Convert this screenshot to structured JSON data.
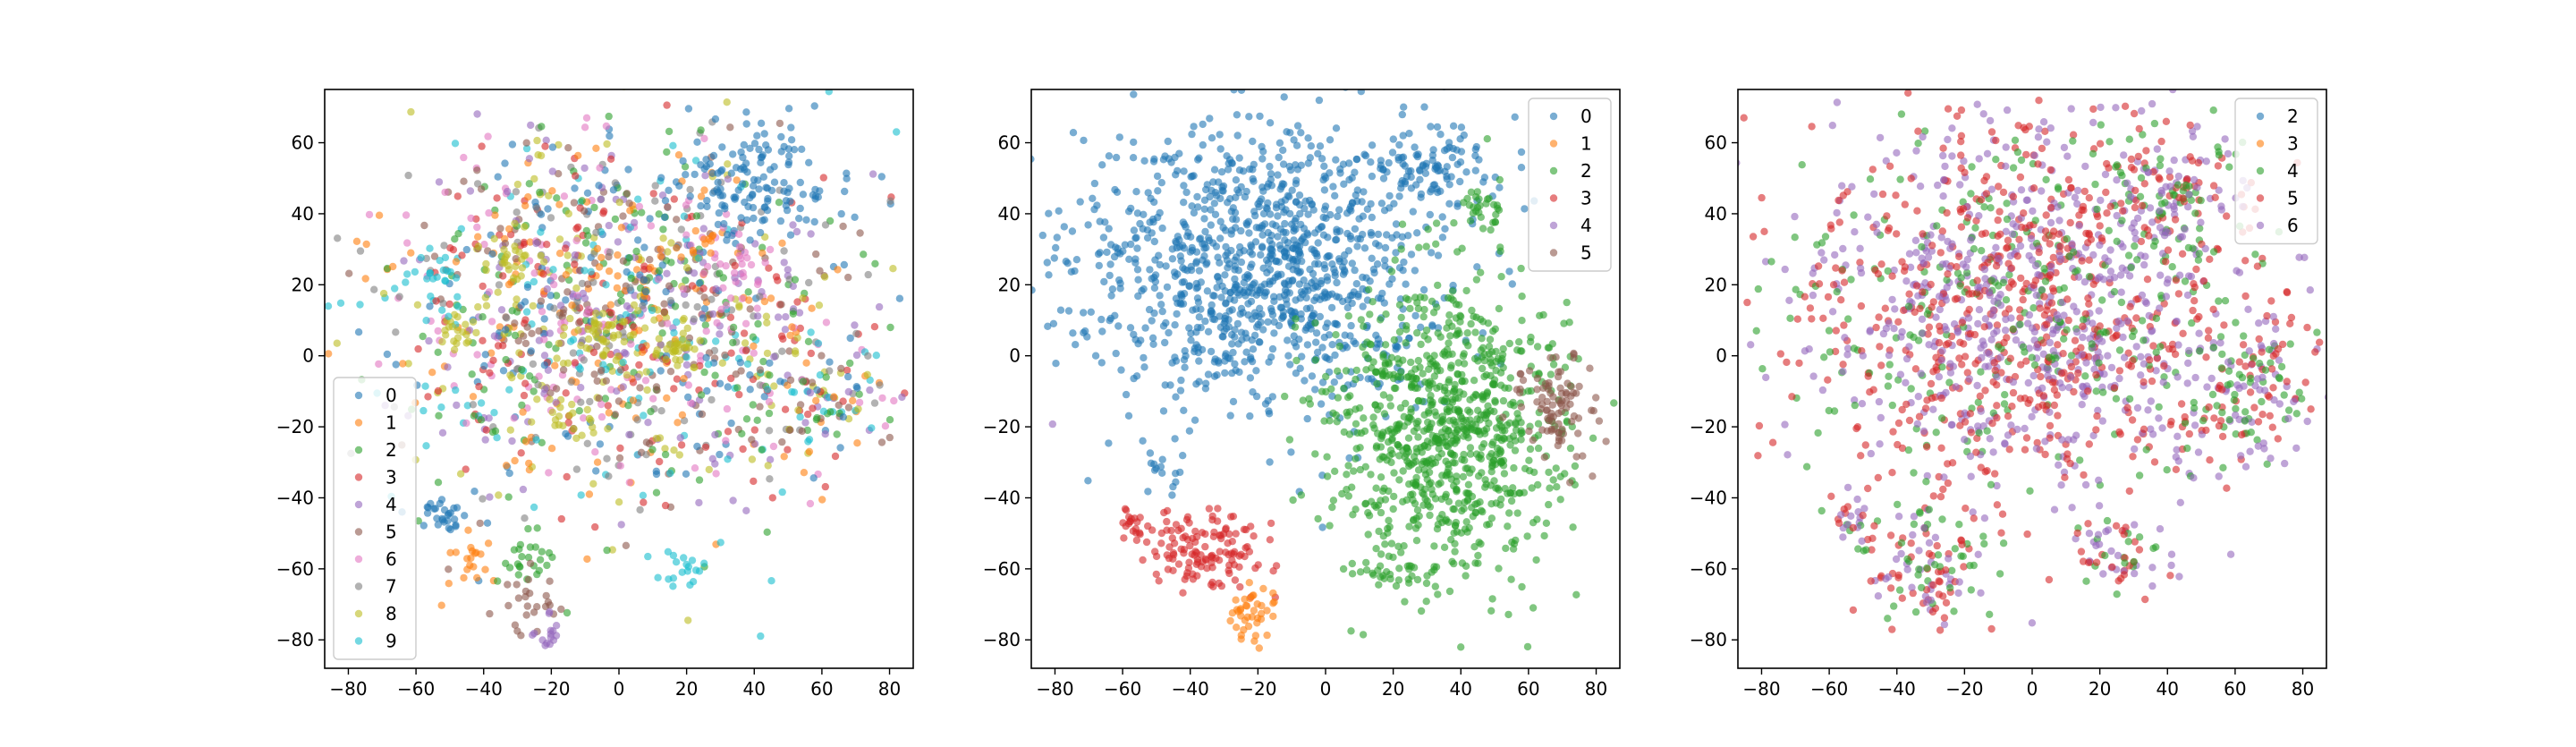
{
  "chart_data": [
    {
      "type": "scatter",
      "title": "",
      "xlabel": "",
      "ylabel": "",
      "xlim": [
        -87,
        87
      ],
      "ylim": [
        -88,
        75
      ],
      "xticks": [
        -80,
        -60,
        -40,
        -20,
        0,
        20,
        40,
        60,
        80
      ],
      "yticks": [
        -80,
        -60,
        -40,
        -20,
        0,
        20,
        40,
        60
      ],
      "grid": false,
      "legend_position": "lower-left",
      "series": [
        {
          "name": "0",
          "color": "#1f77b4"
        },
        {
          "name": "1",
          "color": "#ff7f0e"
        },
        {
          "name": "2",
          "color": "#2ca02c"
        },
        {
          "name": "3",
          "color": "#d62728"
        },
        {
          "name": "4",
          "color": "#9467bd"
        },
        {
          "name": "5",
          "color": "#8c564b"
        },
        {
          "name": "6",
          "color": "#e377c2"
        },
        {
          "name": "7",
          "color": "#7f7f7f"
        },
        {
          "name": "8",
          "color": "#bcbd22"
        },
        {
          "name": "9",
          "color": "#17becf"
        }
      ],
      "clusters": [
        {
          "series": "0",
          "center": [
            40,
            50
          ],
          "spread": [
            11,
            8
          ],
          "n": 130
        },
        {
          "series": "0",
          "center": [
            -52,
            -45
          ],
          "spread": [
            4,
            3
          ],
          "n": 30
        },
        {
          "series": "8",
          "center": [
            -5,
            6
          ],
          "spread": [
            5,
            4
          ],
          "n": 40
        },
        {
          "series": "8",
          "center": [
            18,
            2
          ],
          "spread": [
            4,
            3
          ],
          "n": 30
        },
        {
          "series": "8",
          "center": [
            -30,
            28
          ],
          "spread": [
            4,
            3
          ],
          "n": 20
        },
        {
          "series": "8",
          "center": [
            -48,
            8
          ],
          "spread": [
            4,
            3
          ],
          "n": 20
        },
        {
          "series": "8",
          "center": [
            -15,
            -18
          ],
          "spread": [
            5,
            3
          ],
          "n": 20
        },
        {
          "series": "1",
          "center": [
            -43,
            -58
          ],
          "spread": [
            3,
            4
          ],
          "n": 20
        },
        {
          "series": "2",
          "center": [
            -28,
            -58
          ],
          "spread": [
            5,
            4
          ],
          "n": 25
        },
        {
          "series": "6",
          "center": [
            35,
            25
          ],
          "spread": [
            8,
            6
          ],
          "n": 25
        },
        {
          "series": "9",
          "center": [
            -55,
            20
          ],
          "spread": [
            5,
            5
          ],
          "n": 25
        },
        {
          "series": "9",
          "center": [
            20,
            -60
          ],
          "spread": [
            5,
            3
          ],
          "n": 20
        },
        {
          "series": "1",
          "center": [
            25,
            30
          ],
          "spread": [
            3,
            3
          ],
          "n": 12
        },
        {
          "series": "5",
          "center": [
            -25,
            -70
          ],
          "spread": [
            5,
            5
          ],
          "n": 25
        },
        {
          "series": "4",
          "center": [
            -22,
            -78
          ],
          "spread": [
            3,
            3
          ],
          "n": 15
        }
      ],
      "background_blob": {
        "series": [
          "0",
          "1",
          "2",
          "3",
          "4",
          "5",
          "6",
          "7",
          "8",
          "9"
        ],
        "center": [
          -2,
          12
        ],
        "spread": [
          34,
          26
        ],
        "n": 1400
      },
      "tail_blob": {
        "series": [
          "0",
          "1",
          "2",
          "3",
          "4",
          "5",
          "6",
          "7",
          "8",
          "9"
        ],
        "center": [
          60,
          -12
        ],
        "spread": [
          10,
          9
        ],
        "n": 120
      }
    },
    {
      "type": "scatter",
      "title": "",
      "xlabel": "",
      "ylabel": "",
      "xlim": [
        -87,
        87
      ],
      "ylim": [
        -88,
        75
      ],
      "xticks": [
        -80,
        -60,
        -40,
        -20,
        0,
        20,
        40,
        60,
        80
      ],
      "yticks": [
        -80,
        -60,
        -40,
        -20,
        0,
        20,
        40,
        60
      ],
      "grid": false,
      "legend_position": "upper-right",
      "series": [
        {
          "name": "0",
          "color": "#1f77b4"
        },
        {
          "name": "1",
          "color": "#ff7f0e"
        },
        {
          "name": "2",
          "color": "#2ca02c"
        },
        {
          "name": "3",
          "color": "#d62728"
        },
        {
          "name": "4",
          "color": "#9467bd"
        },
        {
          "name": "5",
          "color": "#8c564b"
        }
      ],
      "clusters": [
        {
          "series": "0",
          "center": [
            -20,
            25
          ],
          "spread": [
            28,
            20
          ],
          "n": 1100
        },
        {
          "series": "0",
          "center": [
            33,
            53
          ],
          "spread": [
            9,
            6
          ],
          "n": 90
        },
        {
          "series": "0",
          "center": [
            -48,
            -32
          ],
          "spread": [
            4,
            3
          ],
          "n": 15
        },
        {
          "series": "2",
          "center": [
            35,
            -20
          ],
          "spread": [
            17,
            20
          ],
          "n": 900
        },
        {
          "series": "2",
          "center": [
            45,
            42
          ],
          "spread": [
            4,
            3
          ],
          "n": 30
        },
        {
          "series": "2",
          "center": [
            20,
            -60
          ],
          "spread": [
            5,
            3
          ],
          "n": 30
        },
        {
          "series": "5",
          "center": [
            68,
            -15
          ],
          "spread": [
            6,
            8
          ],
          "n": 90
        },
        {
          "series": "3",
          "center": [
            -35,
            -55
          ],
          "spread": [
            9,
            6
          ],
          "n": 130
        },
        {
          "series": "3",
          "center": [
            -57,
            -47
          ],
          "spread": [
            3,
            3
          ],
          "n": 20
        },
        {
          "series": "1",
          "center": [
            -22,
            -73
          ],
          "spread": [
            3,
            4
          ],
          "n": 40
        },
        {
          "series": "4",
          "center": [
            -80,
            -20
          ],
          "spread": [
            0.5,
            0.5
          ],
          "n": 1
        }
      ]
    },
    {
      "type": "scatter",
      "title": "",
      "xlabel": "",
      "ylabel": "",
      "xlim": [
        -87,
        87
      ],
      "ylim": [
        -88,
        75
      ],
      "xticks": [
        -80,
        -60,
        -40,
        -20,
        0,
        20,
        40,
        60,
        80
      ],
      "yticks": [
        -80,
        -60,
        -40,
        -20,
        0,
        20,
        40,
        60
      ],
      "grid": false,
      "legend_position": "upper-right",
      "series": [
        {
          "name": "2",
          "color": "#1f77b4"
        },
        {
          "name": "3",
          "color": "#ff7f0e"
        },
        {
          "name": "4",
          "color": "#2ca02c"
        },
        {
          "name": "5",
          "color": "#d62728"
        },
        {
          "name": "6",
          "color": "#9467bd"
        }
      ],
      "clusters": [
        {
          "series": "5",
          "center": [
            -80,
            -20
          ],
          "spread": [
            0.5,
            0.5
          ],
          "n": 1
        }
      ],
      "background_blob": {
        "series": [
          "5",
          "6",
          "5",
          "6",
          "4"
        ],
        "center": [
          -2,
          12
        ],
        "spread": [
          35,
          26
        ],
        "n": 1500
      },
      "extra_blobs": [
        {
          "series": [
            "5",
            "6",
            "4"
          ],
          "center": [
            40,
            48
          ],
          "spread": [
            11,
            9
          ],
          "n": 140
        },
        {
          "series": [
            "5",
            "6",
            "4"
          ],
          "center": [
            65,
            -12
          ],
          "spread": [
            10,
            9
          ],
          "n": 120
        },
        {
          "series": [
            "5",
            "6",
            "4"
          ],
          "center": [
            -30,
            -60
          ],
          "spread": [
            9,
            9
          ],
          "n": 120
        },
        {
          "series": [
            "5",
            "6",
            "4"
          ],
          "center": [
            -52,
            -45
          ],
          "spread": [
            4,
            4
          ],
          "n": 30
        },
        {
          "series": [
            "5",
            "6",
            "4"
          ],
          "center": [
            25,
            -55
          ],
          "spread": [
            8,
            5
          ],
          "n": 60
        }
      ]
    }
  ]
}
